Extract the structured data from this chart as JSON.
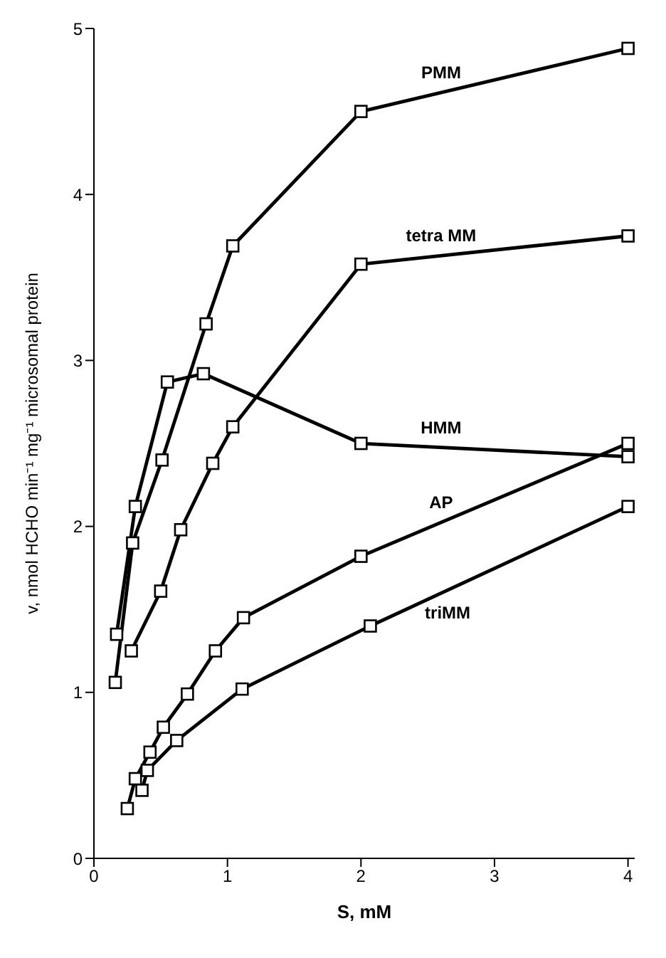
{
  "chart_data": {
    "type": "line",
    "xlabel": "S, mM",
    "ylabel": "v, nmol HCHO min⁻¹ mg⁻¹ microsomal protein",
    "xlim": [
      0,
      4.05
    ],
    "ylim": [
      0,
      5
    ],
    "xticks": [
      0,
      1,
      2,
      3,
      4
    ],
    "yticks": [
      0,
      1,
      2,
      3,
      4,
      5
    ],
    "grid": false,
    "legend": false,
    "marker": "square",
    "line_style": "solid",
    "series": [
      {
        "name": "PMM",
        "color": "#000000",
        "x": [
          0.16,
          0.29,
          0.51,
          0.84,
          1.04,
          2,
          4
        ],
        "values": [
          1.06,
          1.9,
          2.4,
          3.22,
          3.69,
          4.5,
          4.88
        ]
      },
      {
        "name": "tetra MM",
        "color": "#000000",
        "x": [
          0.28,
          0.5,
          0.65,
          0.89,
          1.04,
          2,
          4
        ],
        "values": [
          1.25,
          1.61,
          1.98,
          2.38,
          2.6,
          3.58,
          3.75
        ]
      },
      {
        "name": "HMM",
        "color": "#000000",
        "x": [
          0.17,
          0.31,
          0.55,
          0.82,
          2,
          4
        ],
        "values": [
          1.35,
          2.12,
          2.87,
          2.92,
          2.5,
          2.42
        ]
      },
      {
        "name": "AP",
        "color": "#000000",
        "x": [
          0.25,
          0.31,
          0.42,
          0.52,
          0.7,
          0.91,
          1.12,
          2,
          4
        ],
        "values": [
          0.3,
          0.48,
          0.64,
          0.79,
          0.99,
          1.25,
          1.45,
          1.82,
          2.5
        ]
      },
      {
        "name": "triMM",
        "color": "#000000",
        "x": [
          0.36,
          0.4,
          0.62,
          1.11,
          2.07,
          4
        ],
        "values": [
          0.41,
          0.53,
          0.71,
          1.02,
          1.4,
          2.12
        ]
      }
    ]
  }
}
